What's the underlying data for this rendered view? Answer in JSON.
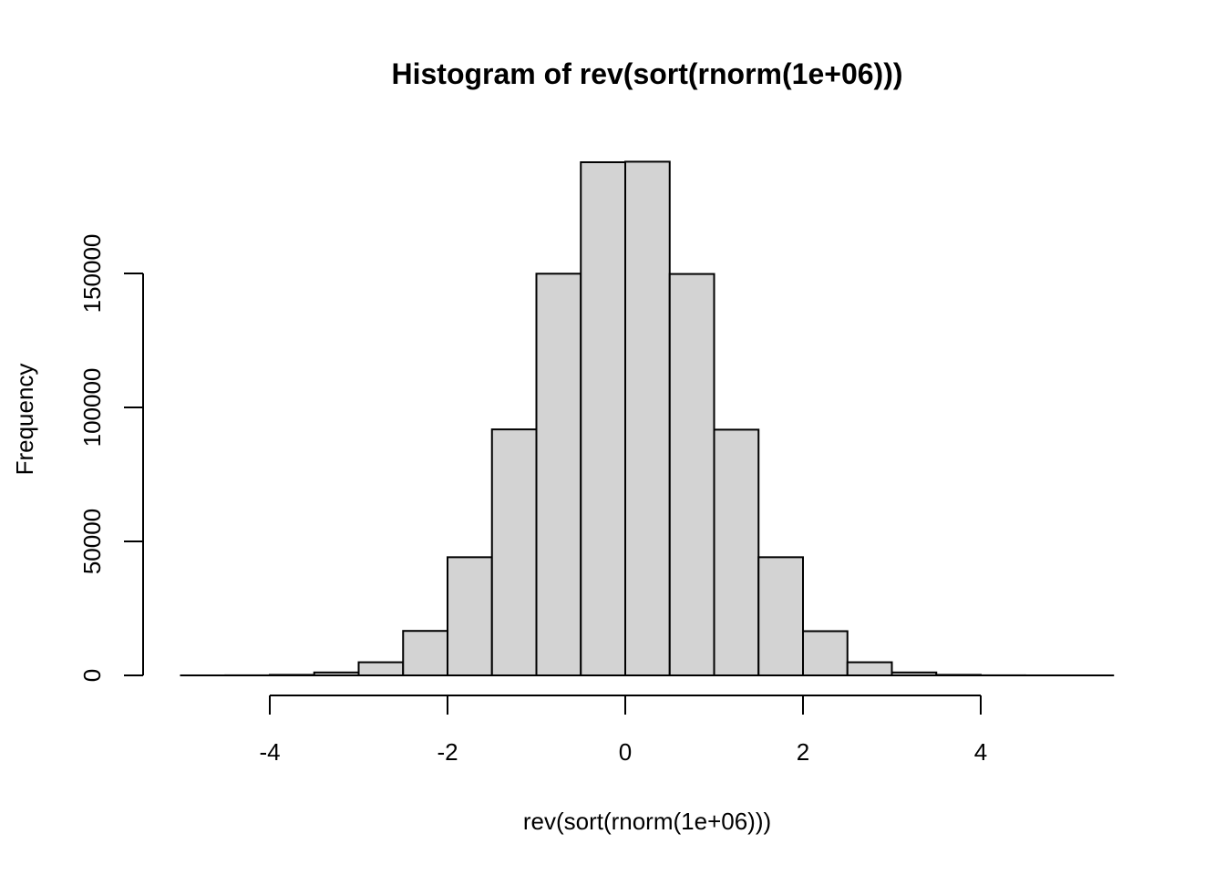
{
  "chart_data": {
    "type": "bar",
    "title": "Histogram of rev(sort(rnorm(1e+06)))",
    "xlabel": "rev(sort(rnorm(1e+06)))",
    "ylabel": "Frequency",
    "x_ticks": [
      "-4",
      "-2",
      "0",
      "2",
      "4"
    ],
    "y_ticks": [
      "0",
      "50000",
      "100000",
      "150000"
    ],
    "bins": [
      {
        "x0": -5.0,
        "x1": -4.5,
        "count": 3
      },
      {
        "x0": -4.5,
        "x1": -4.0,
        "count": 30
      },
      {
        "x0": -4.0,
        "x1": -3.5,
        "count": 200
      },
      {
        "x0": -3.5,
        "x1": -3.0,
        "count": 1100
      },
      {
        "x0": -3.0,
        "x1": -2.5,
        "count": 4900
      },
      {
        "x0": -2.5,
        "x1": -2.0,
        "count": 16600
      },
      {
        "x0": -2.0,
        "x1": -1.5,
        "count": 44100
      },
      {
        "x0": -1.5,
        "x1": -1.0,
        "count": 91800
      },
      {
        "x0": -1.0,
        "x1": -0.5,
        "count": 149900
      },
      {
        "x0": -0.5,
        "x1": 0.0,
        "count": 191500
      },
      {
        "x0": 0.0,
        "x1": 0.5,
        "count": 191700
      },
      {
        "x0": 0.5,
        "x1": 1.0,
        "count": 149800
      },
      {
        "x0": 1.0,
        "x1": 1.5,
        "count": 91700
      },
      {
        "x0": 1.5,
        "x1": 2.0,
        "count": 44100
      },
      {
        "x0": 2.0,
        "x1": 2.5,
        "count": 16500
      },
      {
        "x0": 2.5,
        "x1": 3.0,
        "count": 4900
      },
      {
        "x0": 3.0,
        "x1": 3.5,
        "count": 1100
      },
      {
        "x0": 3.5,
        "x1": 4.0,
        "count": 200
      },
      {
        "x0": 4.0,
        "x1": 4.5,
        "count": 30
      },
      {
        "x0": 4.5,
        "x1": 5.0,
        "count": 3
      },
      {
        "x0": 5.0,
        "x1": 5.5,
        "count": 1
      }
    ],
    "xlim": [
      -5,
      5.5
    ],
    "ylim": [
      0,
      191700
    ],
    "grid": false,
    "bar_color": "#d3d3d3",
    "border_color": "#000000"
  }
}
